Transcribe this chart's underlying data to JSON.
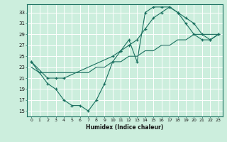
{
  "title": "",
  "xlabel": "Humidex (Indice chaleur)",
  "bg_color": "#cceedd",
  "line_color": "#1a7060",
  "grid_color": "#ffffff",
  "xlim": [
    -0.5,
    23.5
  ],
  "ylim": [
    14,
    34.5
  ],
  "yticks": [
    15,
    17,
    19,
    21,
    23,
    25,
    27,
    29,
    31,
    33
  ],
  "xticks": [
    0,
    1,
    2,
    3,
    4,
    5,
    6,
    7,
    8,
    9,
    10,
    11,
    12,
    13,
    14,
    15,
    16,
    17,
    18,
    19,
    20,
    21,
    22,
    23
  ],
  "line1_x": [
    0,
    1,
    2,
    3,
    4,
    5,
    6,
    7,
    8,
    9,
    10,
    11,
    12,
    13,
    14,
    15,
    16,
    17,
    18,
    19,
    20,
    21,
    22,
    23
  ],
  "line1_y": [
    24,
    22,
    20,
    19,
    17,
    16,
    16,
    15,
    17,
    20,
    24,
    26,
    28,
    24,
    33,
    34,
    34,
    34,
    33,
    31,
    29,
    28,
    28,
    29
  ],
  "line2_x": [
    0,
    2,
    3,
    4,
    10,
    11,
    12,
    13,
    14,
    15,
    16,
    17,
    18,
    19,
    20,
    21,
    22,
    23
  ],
  "line2_y": [
    24,
    21,
    21,
    21,
    25,
    26,
    27,
    28,
    30,
    32,
    33,
    34,
    33,
    32,
    31,
    29,
    28,
    29
  ],
  "line3_x": [
    0,
    1,
    2,
    3,
    4,
    5,
    6,
    7,
    8,
    9,
    10,
    11,
    12,
    13,
    14,
    15,
    16,
    17,
    18,
    19,
    20,
    21,
    22,
    23
  ],
  "line3_y": [
    23,
    22,
    22,
    22,
    22,
    22,
    22,
    22,
    23,
    23,
    24,
    24,
    25,
    25,
    26,
    26,
    27,
    27,
    28,
    28,
    29,
    29,
    29,
    29
  ]
}
